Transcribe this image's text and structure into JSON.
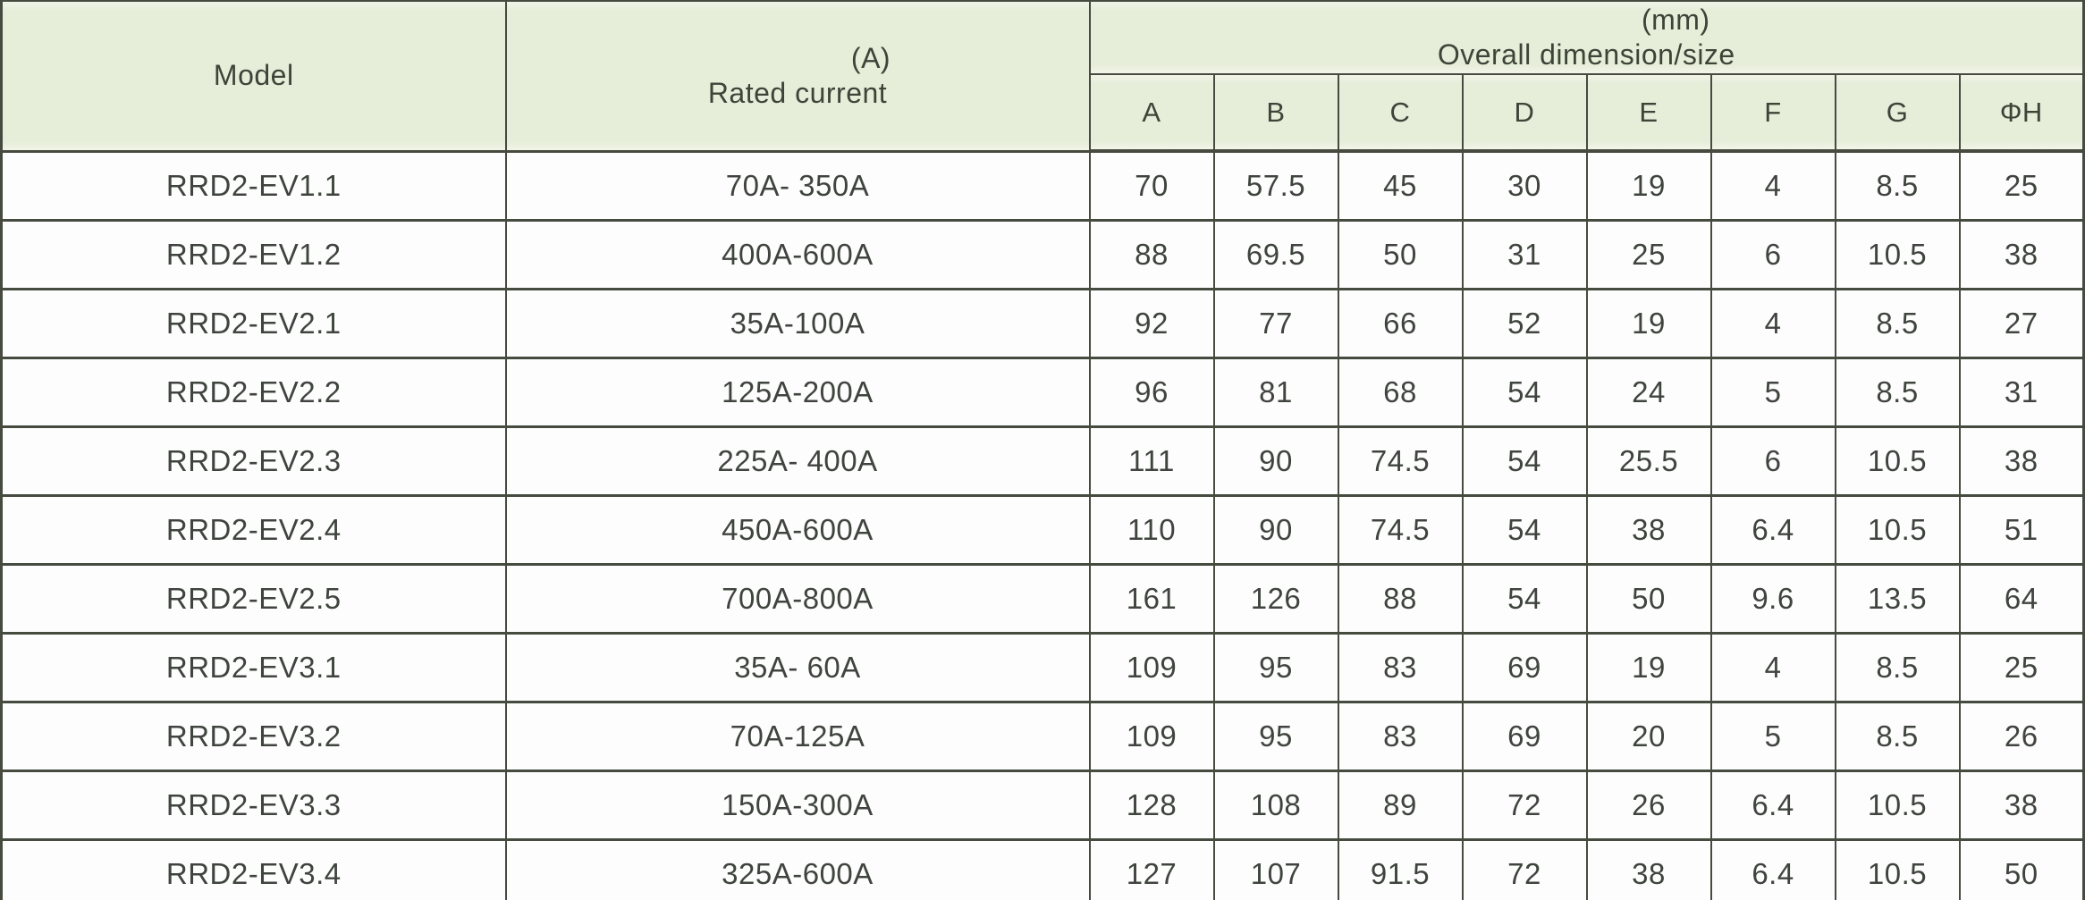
{
  "colors": {
    "header_bg": "#e6eeda",
    "grid_border": "#464b40",
    "text": "#3f443e",
    "row_bg": "#fdfdfd"
  },
  "table": {
    "header": {
      "model_label": "Model",
      "rated_current_line1": "(A)",
      "rated_current_line2": "Rated current",
      "dimension_line1": "(mm)",
      "dimension_line2": "Overall dimension/size",
      "dim_headers": [
        "A",
        "B",
        "C",
        "D",
        "E",
        "F",
        "G",
        "ΦH"
      ]
    },
    "rows": [
      {
        "model": "RRD2-EV1.1",
        "current": "70A- 350A",
        "dims": [
          "70",
          "57.5",
          "45",
          "30",
          "19",
          "4",
          "8.5",
          "25"
        ]
      },
      {
        "model": "RRD2-EV1.2",
        "current": "400A-600A",
        "dims": [
          "88",
          "69.5",
          "50",
          "31",
          "25",
          "6",
          "10.5",
          "38"
        ]
      },
      {
        "model": "RRD2-EV2.1",
        "current": "35A-100A",
        "dims": [
          "92",
          "77",
          "66",
          "52",
          "19",
          "4",
          "8.5",
          "27"
        ]
      },
      {
        "model": "RRD2-EV2.2",
        "current": "125A-200A",
        "dims": [
          "96",
          "81",
          "68",
          "54",
          "24",
          "5",
          "8.5",
          "31"
        ]
      },
      {
        "model": "RRD2-EV2.3",
        "current": "225A- 400A",
        "dims": [
          "111",
          "90",
          "74.5",
          "54",
          "25.5",
          "6",
          "10.5",
          "38"
        ]
      },
      {
        "model": "RRD2-EV2.4",
        "current": "450A-600A",
        "dims": [
          "110",
          "90",
          "74.5",
          "54",
          "38",
          "6.4",
          "10.5",
          "51"
        ]
      },
      {
        "model": "RRD2-EV2.5",
        "current": "700A-800A",
        "dims": [
          "161",
          "126",
          "88",
          "54",
          "50",
          "9.6",
          "13.5",
          "64"
        ]
      },
      {
        "model": "RRD2-EV3.1",
        "current": "35A- 60A",
        "dims": [
          "109",
          "95",
          "83",
          "69",
          "19",
          "4",
          "8.5",
          "25"
        ]
      },
      {
        "model": "RRD2-EV3.2",
        "current": "70A-125A",
        "dims": [
          "109",
          "95",
          "83",
          "69",
          "20",
          "5",
          "8.5",
          "26"
        ]
      },
      {
        "model": "RRD2-EV3.3",
        "current": "150A-300A",
        "dims": [
          "128",
          "108",
          "89",
          "72",
          "26",
          "6.4",
          "10.5",
          "38"
        ]
      },
      {
        "model": "RRD2-EV3.4",
        "current": "325A-600A",
        "dims": [
          "127",
          "107",
          "91.5",
          "72",
          "38",
          "6.4",
          "10.5",
          "50"
        ]
      }
    ]
  }
}
